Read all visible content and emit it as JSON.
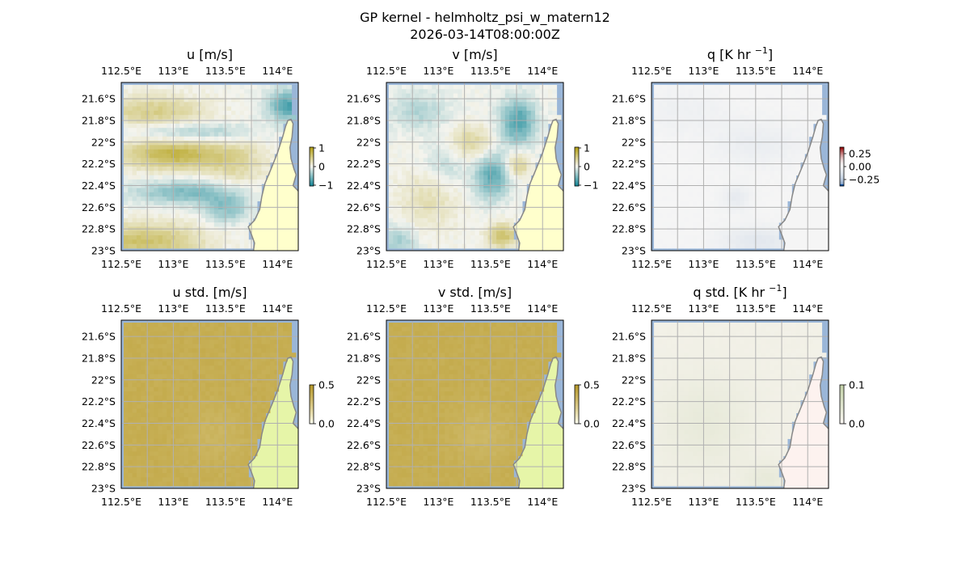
{
  "figure": {
    "title_line1": "GP kernel - helmholtz_psi_w_matern12",
    "title_line2": "2026-03-14T08:00:00Z"
  },
  "colors": {
    "ocean": "#9ab6d8",
    "land": "#ffffcc",
    "land_std": "#e6f5a8",
    "land_qstd": "#fdf2ef",
    "coast": "#888888",
    "grid": "#b0b0b0",
    "diverging_low": "#1b8a9a",
    "diverging_mid": "#f4f4ee",
    "diverging_high": "#b5a21a",
    "std_high": "#b89a2c",
    "q_low": "#1050a0",
    "q_high": "#9a1010"
  },
  "chart_data": [
    {
      "type": "heatmap",
      "panel": "u",
      "title": "u [m/s]",
      "xticks": [
        "112.5°E",
        "113°E",
        "113.5°E",
        "114°E"
      ],
      "yticks": [
        "21.6°S",
        "21.8°S",
        "22°S",
        "22.2°S",
        "22.4°S",
        "22.6°S",
        "22.8°S",
        "23°S"
      ],
      "lon_range": [
        112.5,
        114.2
      ],
      "lat_range": [
        -23.0,
        -21.45
      ],
      "colorbar": {
        "ticks": [
          "1",
          "0",
          "−1"
        ],
        "vmin": -1.3,
        "vmax": 1.3,
        "cmap": "diverging"
      },
      "blobs": [
        {
          "lon": 113.0,
          "lat": -22.1,
          "sx": 0.35,
          "sy": 0.1,
          "v": 1.0
        },
        {
          "lon": 112.8,
          "lat": -21.7,
          "sx": 0.35,
          "sy": 0.1,
          "v": 0.6
        },
        {
          "lon": 113.1,
          "lat": -22.45,
          "sx": 0.35,
          "sy": 0.08,
          "v": -0.7
        },
        {
          "lon": 112.7,
          "lat": -22.9,
          "sx": 0.4,
          "sy": 0.12,
          "v": 0.8
        },
        {
          "lon": 114.1,
          "lat": -21.65,
          "sx": 0.15,
          "sy": 0.1,
          "v": -1.0
        },
        {
          "lon": 113.2,
          "lat": -21.9,
          "sx": 0.4,
          "sy": 0.06,
          "v": -0.5
        },
        {
          "lon": 113.5,
          "lat": -22.6,
          "sx": 0.15,
          "sy": 0.1,
          "v": -0.6
        },
        {
          "lon": 113.6,
          "lat": -22.2,
          "sx": 0.2,
          "sy": 0.15,
          "v": 0.4
        }
      ]
    },
    {
      "type": "heatmap",
      "panel": "v",
      "title": "v [m/s]",
      "xticks": [
        "112.5°E",
        "113°E",
        "113.5°E",
        "114°E"
      ],
      "yticks": [
        "21.6°S",
        "21.8°S",
        "22°S",
        "22.2°S",
        "22.4°S",
        "22.6°S",
        "22.8°S",
        "23°S"
      ],
      "lon_range": [
        112.5,
        114.2
      ],
      "lat_range": [
        -23.0,
        -21.45
      ],
      "colorbar": {
        "ticks": [
          "1",
          "0",
          "−1"
        ],
        "vmin": -1.3,
        "vmax": 1.3,
        "cmap": "diverging"
      },
      "blobs": [
        {
          "lon": 113.75,
          "lat": -21.8,
          "sx": 0.12,
          "sy": 0.15,
          "v": -1.0
        },
        {
          "lon": 113.5,
          "lat": -22.3,
          "sx": 0.12,
          "sy": 0.15,
          "v": -0.9
        },
        {
          "lon": 113.6,
          "lat": -22.85,
          "sx": 0.1,
          "sy": 0.08,
          "v": 0.8
        },
        {
          "lon": 113.3,
          "lat": -22.0,
          "sx": 0.15,
          "sy": 0.12,
          "v": 0.5
        },
        {
          "lon": 112.8,
          "lat": -21.7,
          "sx": 0.2,
          "sy": 0.12,
          "v": -0.4
        },
        {
          "lon": 112.9,
          "lat": -22.5,
          "sx": 0.2,
          "sy": 0.2,
          "v": 0.35
        },
        {
          "lon": 112.6,
          "lat": -22.9,
          "sx": 0.12,
          "sy": 0.1,
          "v": -0.5
        },
        {
          "lon": 113.05,
          "lat": -22.2,
          "sx": 0.15,
          "sy": 0.15,
          "v": -0.35
        },
        {
          "lon": 113.75,
          "lat": -22.2,
          "sx": 0.08,
          "sy": 0.08,
          "v": 0.6
        }
      ]
    },
    {
      "type": "heatmap",
      "panel": "q",
      "title": "q [K hr",
      "title_sup": "−1",
      "title_close": "]",
      "xticks": [
        "112.5°E",
        "113°E",
        "113.5°E",
        "114°E"
      ],
      "yticks": [
        "21.6°S",
        "21.8°S",
        "22°S",
        "22.2°S",
        "22.4°S",
        "22.6°S",
        "22.8°S",
        "23°S"
      ],
      "lon_range": [
        112.5,
        114.2
      ],
      "lat_range": [
        -23.0,
        -21.45
      ],
      "colorbar": {
        "ticks": [
          "0.25",
          "0.00",
          "−0.25"
        ],
        "vmin": -0.35,
        "vmax": 0.35,
        "cmap": "q"
      },
      "blobs": [
        {
          "lon": 113.5,
          "lat": -22.9,
          "sx": 0.25,
          "sy": 0.1,
          "v": -0.1
        },
        {
          "lon": 113.3,
          "lat": -22.5,
          "sx": 0.1,
          "sy": 0.08,
          "v": -0.08
        },
        {
          "lon": 113.5,
          "lat": -22.0,
          "sx": 0.3,
          "sy": 0.15,
          "v": -0.06
        },
        {
          "lon": 112.8,
          "lat": -21.7,
          "sx": 0.3,
          "sy": 0.15,
          "v": -0.04
        }
      ]
    },
    {
      "type": "heatmap",
      "panel": "u_std",
      "title": "u std. [m/s]",
      "xticks": [
        "112.5°E",
        "113°E",
        "113.5°E",
        "114°E"
      ],
      "yticks": [
        "21.6°S",
        "21.8°S",
        "22°S",
        "22.2°S",
        "22.4°S",
        "22.6°S",
        "22.8°S",
        "23°S"
      ],
      "lon_range": [
        112.5,
        114.2
      ],
      "lat_range": [
        -23.0,
        -21.45
      ],
      "colorbar": {
        "ticks": [
          "0.5",
          "0.0"
        ],
        "vmin": 0.0,
        "vmax": 0.55,
        "cmap": "std"
      },
      "blobs": [
        {
          "lon": 113.4,
          "lat": -22.5,
          "sx": 0.2,
          "sy": 0.2,
          "v": -0.05
        }
      ]
    },
    {
      "type": "heatmap",
      "panel": "v_std",
      "title": "v std. [m/s]",
      "xticks": [
        "112.5°E",
        "113°E",
        "113.5°E",
        "114°E"
      ],
      "yticks": [
        "21.6°S",
        "21.8°S",
        "22°S",
        "22.2°S",
        "22.4°S",
        "22.6°S",
        "22.8°S",
        "23°S"
      ],
      "lon_range": [
        112.5,
        114.2
      ],
      "lat_range": [
        -23.0,
        -21.45
      ],
      "colorbar": {
        "ticks": [
          "0.5",
          "0.0"
        ],
        "vmin": 0.0,
        "vmax": 0.55,
        "cmap": "std"
      },
      "blobs": [
        {
          "lon": 113.4,
          "lat": -22.5,
          "sx": 0.2,
          "sy": 0.2,
          "v": -0.06
        }
      ]
    },
    {
      "type": "heatmap",
      "panel": "q_std",
      "title": "q std. [K hr",
      "title_sup": "−1",
      "title_close": "]",
      "xticks": [
        "112.5°E",
        "113°E",
        "113.5°E",
        "114°E"
      ],
      "yticks": [
        "21.6°S",
        "21.8°S",
        "22°S",
        "22.2°S",
        "22.4°S",
        "22.6°S",
        "22.8°S",
        "23°S"
      ],
      "lon_range": [
        112.5,
        114.2
      ],
      "lat_range": [
        -23.0,
        -21.45
      ],
      "colorbar": {
        "ticks": [
          "0.1",
          "0.0"
        ],
        "vmin": 0.0,
        "vmax": 0.12,
        "cmap": "qstd"
      },
      "blobs": [
        {
          "lon": 113.0,
          "lat": -22.4,
          "sx": 0.3,
          "sy": 0.3,
          "v": 0.02
        },
        {
          "lon": 113.6,
          "lat": -22.9,
          "sx": 0.15,
          "sy": 0.1,
          "v": 0.02
        }
      ]
    }
  ]
}
